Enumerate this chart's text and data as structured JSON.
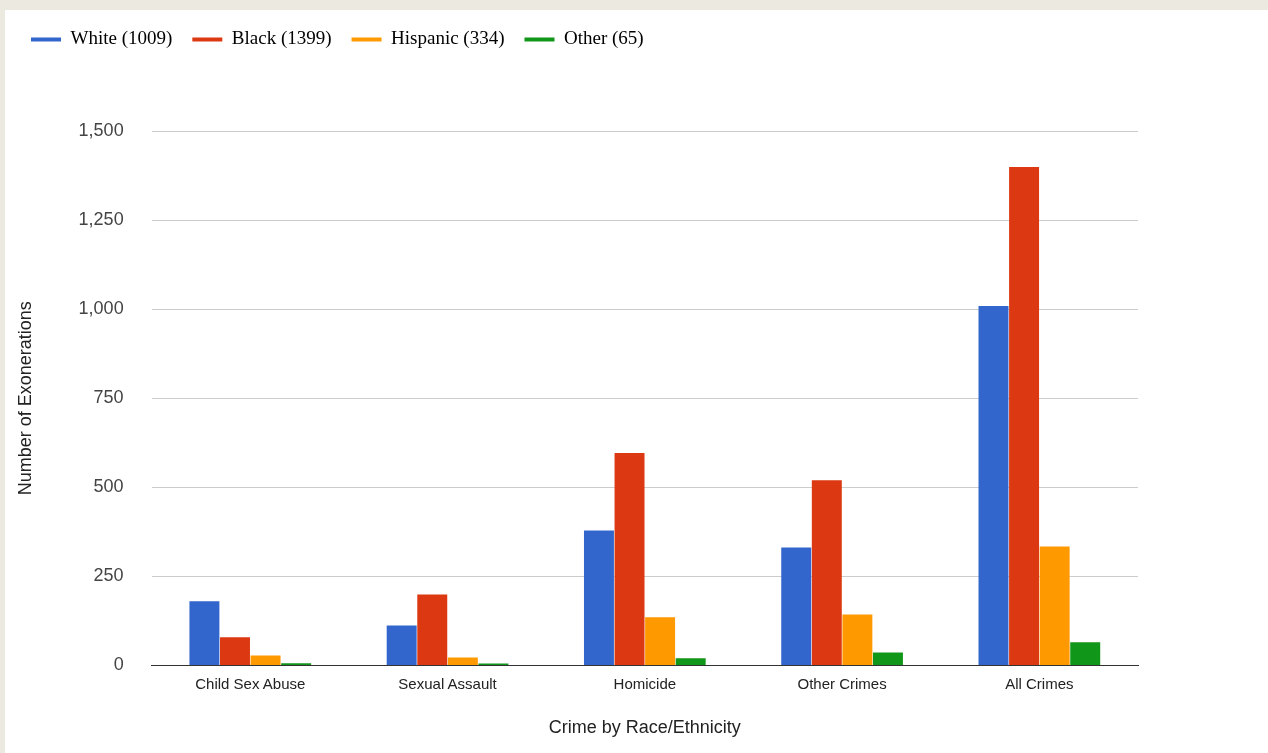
{
  "chart_data": {
    "type": "bar",
    "xlabel": "Crime by Race/Ethnicity",
    "ylabel": "Number of Exonerations",
    "categories": [
      "Child Sex Abuse",
      "Sexual Assault",
      "Homicide",
      "Other Crimes",
      "All Crimes"
    ],
    "series": [
      {
        "name": "White (1009)",
        "color": "#3366cc",
        "values": [
          180,
          112,
          379,
          331,
          1009
        ]
      },
      {
        "name": "Black (1399)",
        "color": "#dc3912",
        "values": [
          79,
          199,
          596,
          520,
          1399
        ]
      },
      {
        "name": "Hispanic (334)",
        "color": "#ff9900",
        "values": [
          28,
          22,
          135,
          143,
          334
        ]
      },
      {
        "name": "Other (65)",
        "color": "#109618",
        "values": [
          6,
          5,
          20,
          36,
          65
        ]
      }
    ],
    "ylim": [
      0,
      1500
    ],
    "yticks": [
      {
        "value": 0,
        "label": "0"
      },
      {
        "value": 250,
        "label": "250"
      },
      {
        "value": 500,
        "label": "500"
      },
      {
        "value": 750,
        "label": "750"
      },
      {
        "value": 1000,
        "label": "1,000"
      },
      {
        "value": 1250,
        "label": "1,250"
      },
      {
        "value": 1500,
        "label": "1,500"
      }
    ],
    "grid": "y",
    "legend": "top left"
  }
}
